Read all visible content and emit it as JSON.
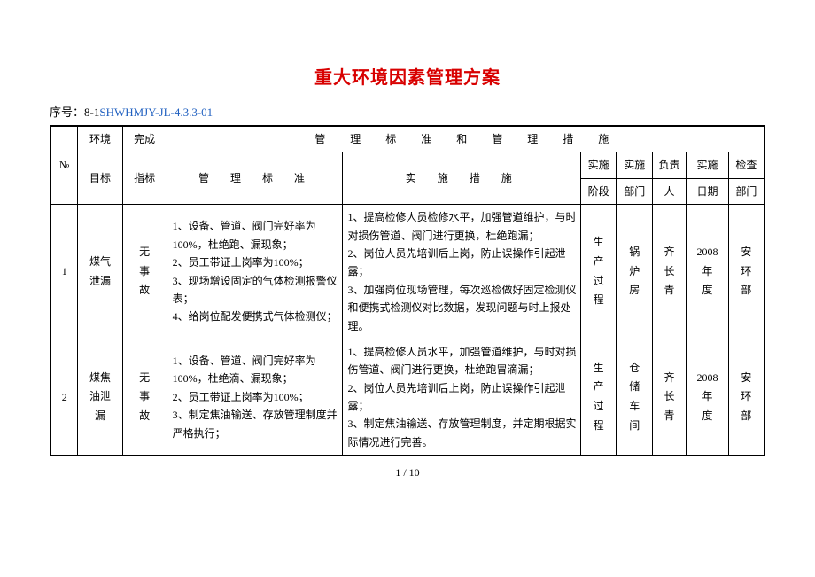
{
  "doc": {
    "title": "重大环境因素管理方案",
    "serial_label": "序号：8-1",
    "serial_code": "SHWHMJY-JL-4.3.3-01",
    "page_number": "1 / 10"
  },
  "col_widths": {
    "no": "26",
    "target": "42",
    "indicator": "42",
    "standard": "166",
    "measure": "226",
    "phase": "34",
    "dept": "34",
    "resp": "32",
    "date": "40",
    "check": "34"
  },
  "headers": {
    "no": "№",
    "target_l1": "环境",
    "target_l2": "目标",
    "indicator_l1": "完成",
    "indicator_l2": "指标",
    "group": "管　理　标　准　和　管　理　措　施",
    "standard": "管　理　标　准",
    "measure": "实　施　措　施",
    "phase_l1": "实施",
    "phase_l2": "阶段",
    "dept_l1": "实施",
    "dept_l2": "部门",
    "resp_l1": "负责",
    "resp_l2": "人",
    "date_l1": "实施",
    "date_l2": "日期",
    "check_l1": "检查",
    "check_l2": "部门"
  },
  "rows": [
    {
      "no": "1",
      "target": "煤气\n泄漏",
      "indicator": "无\n事\n故",
      "standard": "1、设备、管道、阀门完好率为100%，杜绝跑、漏现象；\n2、员工带证上岗率为100%；\n3、现场增设固定的气体检测报警仪表；\n4、给岗位配发便携式气体检测仪；",
      "measure": "1、提高检修人员检修水平，加强管道维护，与时对损伤管道、阀门进行更换，杜绝跑漏；\n2、岗位人员先培训后上岗，防止误操作引起泄露；\n3、加强岗位现场管理，每次巡检做好固定检测仪和便携式检测仪对比数据，发现问题与时上报处理。",
      "phase": "生\n产\n过\n程",
      "dept": "锅\n炉\n房",
      "resp": "齐\n长\n青",
      "date": "2008\n年\n度",
      "check": "安\n环\n部"
    },
    {
      "no": "2",
      "target": "煤焦\n油泄\n漏",
      "indicator": "无\n事\n故",
      "standard": "1、设备、管道、阀门完好率为100%，杜绝滴、漏现象；\n2、员工带证上岗率为100%；\n3、制定焦油输送、存放管理制度并严格执行；",
      "measure": "1、提高检修人员水平，加强管道维护，与时对损伤管道、阀门进行更换，杜绝跑冒滴漏；\n2、岗位人员先培训后上岗，防止误操作引起泄露；\n3、制定焦油输送、存放管理制度，并定期根据实际情况进行完善。",
      "phase": "生\n产\n过\n程",
      "dept": "仓\n储\n车\n间",
      "resp": "齐\n长\n青",
      "date": "2008\n年\n度",
      "check": "安\n环\n部"
    }
  ]
}
